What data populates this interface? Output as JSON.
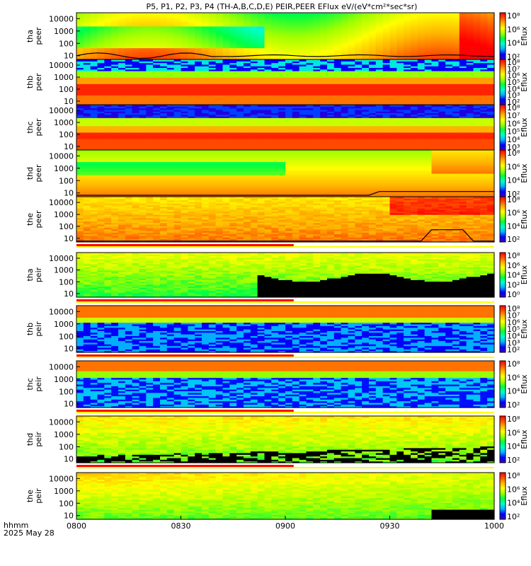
{
  "chart_data": {
    "type": "heatmap",
    "title": "P5, P1, P2, P3, P4 (TH-A,B,C,D,E) PEIR,PEER EFlux eV/(eV*cm²*sec*sr)",
    "x_ticks": [
      "0800",
      "0830",
      "0900",
      "0930",
      "1000"
    ],
    "x_label_row1": "hhmm",
    "x_label_row2": "2025 May 28",
    "xlim": [
      "0800",
      "1000"
    ],
    "y_scale": "log",
    "ylim": [
      5,
      30000
    ],
    "colorscale": [
      "#3b00c8",
      "#0000ff",
      "#00b4ff",
      "#00ffd0",
      "#00ff40",
      "#a0ff00",
      "#ffff00",
      "#ffb400",
      "#ff5000",
      "#ff0000"
    ],
    "panels": [
      {
        "probe": "tha",
        "species": "peer",
        "y_ticks": [
          "10000",
          "1000",
          "100",
          "10"
        ],
        "cbar_ticks": [
          "10⁸",
          "10⁶",
          "10⁴",
          "10²"
        ],
        "cbar_label": "Eflux",
        "has_overlay": true
      },
      {
        "probe": "thb",
        "species": "peer",
        "y_ticks": [
          "10000",
          "1000",
          "100",
          "10"
        ],
        "cbar_ticks": [
          "10⁸",
          "10⁷",
          "10⁶",
          "10⁵",
          "10⁴",
          "10³",
          "10²"
        ],
        "cbar_label": "Eflux"
      },
      {
        "probe": "thc",
        "species": "peer",
        "y_ticks": [
          "10000",
          "1000",
          "100",
          "10"
        ],
        "cbar_ticks": [
          "10⁸",
          "10⁷",
          "10⁶",
          "10⁵",
          "10⁴",
          "10³"
        ],
        "cbar_label": "Eflux"
      },
      {
        "probe": "thd",
        "species": "peer",
        "y_ticks": [
          "10000",
          "1000",
          "100",
          "10"
        ],
        "cbar_ticks": [
          "10⁸",
          "10⁶",
          "10⁴",
          "10²"
        ],
        "cbar_label": "Eflux",
        "has_overlay": true
      },
      {
        "probe": "the",
        "species": "peer",
        "y_ticks": [
          "10000",
          "1000",
          "100",
          "10"
        ],
        "cbar_ticks": [
          "10⁸",
          "10⁶",
          "10⁴",
          "10²"
        ],
        "cbar_label": "Eflux",
        "has_overlay": true
      },
      {
        "probe": "tha",
        "species": "peir",
        "y_ticks": [
          "10000",
          "1000",
          "100",
          "10"
        ],
        "cbar_ticks": [
          "10⁸",
          "10⁶",
          "10⁴",
          "10²",
          "10⁰"
        ],
        "cbar_label": "Eflux"
      },
      {
        "probe": "thb",
        "species": "peir",
        "y_ticks": [
          "10000",
          "1000",
          "100",
          "10"
        ],
        "cbar_ticks": [
          "10⁸",
          "10⁷",
          "10⁶",
          "10⁵",
          "10⁴",
          "10³",
          "10²"
        ],
        "cbar_label": "Eflux"
      },
      {
        "probe": "thc",
        "species": "peir",
        "y_ticks": [
          "10000",
          "1000",
          "100",
          "10"
        ],
        "cbar_ticks": [
          "10⁸",
          "10⁶",
          "10⁴",
          "10²"
        ],
        "cbar_label": "Eflux"
      },
      {
        "probe": "thd",
        "species": "peir",
        "y_ticks": [
          "10000",
          "1000",
          "100",
          "10"
        ],
        "cbar_ticks": [
          "10⁸",
          "10⁶",
          "10⁴",
          "10²"
        ],
        "cbar_label": "Eflux"
      },
      {
        "probe": "the",
        "species": "peir",
        "y_ticks": [
          "10000",
          "1000",
          "100",
          "10"
        ],
        "cbar_ticks": [
          "10⁸",
          "10⁶",
          "10⁴",
          "10²"
        ],
        "cbar_label": "Eflux"
      }
    ]
  }
}
